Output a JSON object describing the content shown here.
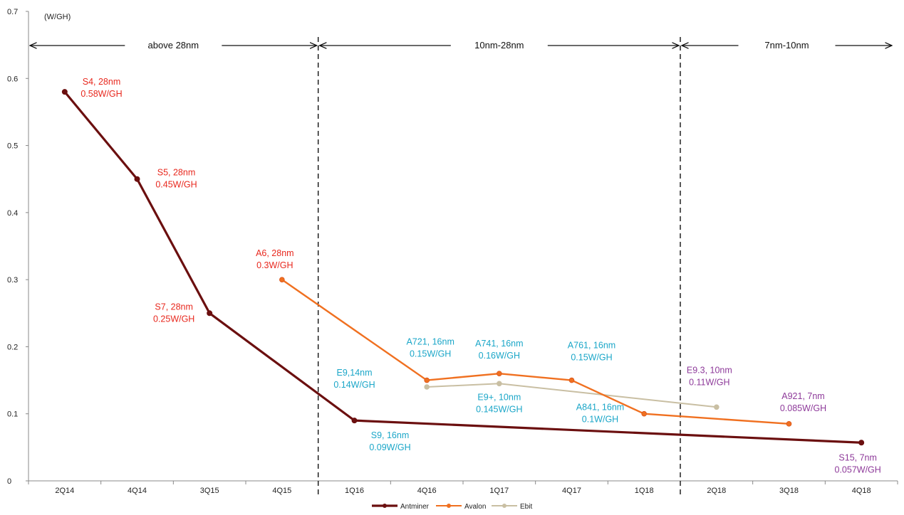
{
  "chart_data": {
    "type": "line",
    "unit_label": "(W/GH)",
    "categories": [
      "2Q14",
      "4Q14",
      "3Q15",
      "4Q15",
      "1Q16",
      "4Q16",
      "1Q17",
      "4Q17",
      "1Q18",
      "2Q18",
      "3Q18",
      "4Q18"
    ],
    "ylim": [
      0,
      0.7
    ],
    "yticks": [
      0,
      0.1,
      0.2,
      0.3,
      0.4,
      0.5,
      0.6,
      0.7
    ],
    "ytick_labels": [
      "0",
      "0.1",
      "0.2",
      "0.3",
      "0.4",
      "0.5",
      "0.6",
      "0.7"
    ],
    "grid": false,
    "legend_position": "bottom",
    "periods": [
      {
        "label": "above 28nm",
        "from": -0.5,
        "to": 3.5
      },
      {
        "label": "10nm-28nm",
        "from": 3.5,
        "to": 8.5
      },
      {
        "label": "7nm-10nm",
        "from": 8.5,
        "to": 11.5
      }
    ],
    "dividers": [
      3.5,
      8.5
    ],
    "series": [
      {
        "name": "Antminer",
        "color": "#6b0f0f",
        "points": [
          [
            "2Q14",
            0.58
          ],
          [
            "4Q14",
            0.45
          ],
          [
            "3Q15",
            0.25
          ],
          [
            "1Q16",
            0.09
          ],
          [
            "4Q18",
            0.057
          ]
        ]
      },
      {
        "name": "Avalon",
        "color": "#f07020",
        "points": [
          [
            "4Q15",
            0.3
          ],
          [
            "4Q16",
            0.15
          ],
          [
            "1Q17",
            0.16
          ],
          [
            "4Q17",
            0.15
          ],
          [
            "1Q18",
            0.1
          ],
          [
            "3Q18",
            0.085
          ]
        ]
      },
      {
        "name": "Ebit",
        "color": "#c9bfa3",
        "points": [
          [
            "4Q16",
            0.14
          ],
          [
            "1Q17",
            0.145
          ],
          [
            "2Q18",
            0.11
          ]
        ]
      }
    ],
    "annotations": [
      {
        "lines": [
          "S4, 28nm",
          "0.58W/GH"
        ],
        "x": "4Q14",
        "dx": -50,
        "y": 0.58,
        "dy": -10,
        "color": "#e8281e"
      },
      {
        "lines": [
          "S5, 28nm",
          "0.45W/GH"
        ],
        "x": "4Q14",
        "dx": 55,
        "y": 0.45,
        "dy": -5,
        "color": "#e8281e"
      },
      {
        "lines": [
          "A6, 28nm",
          "0.3W/GH"
        ],
        "x": "4Q15",
        "dx": -10,
        "y": 0.3,
        "dy": -33,
        "color": "#e8281e"
      },
      {
        "lines": [
          "S7, 28nm",
          "0.25W/GH"
        ],
        "x": "3Q15",
        "dx": -50,
        "y": 0.25,
        "dy": -5,
        "color": "#e8281e"
      },
      {
        "lines": [
          "A721, 16nm",
          "0.15W/GH"
        ],
        "x": "4Q16",
        "dx": 5,
        "y": 0.15,
        "dy": -50,
        "color": "#1aa6c8"
      },
      {
        "lines": [
          "A741, 16nm",
          "0.16W/GH"
        ],
        "x": "1Q17",
        "dx": 0,
        "y": 0.16,
        "dy": -38,
        "color": "#1aa6c8"
      },
      {
        "lines": [
          "A761, 16nm",
          "0.15W/GH"
        ],
        "x": "4Q17",
        "dx": 28,
        "y": 0.15,
        "dy": -45,
        "color": "#1aa6c8"
      },
      {
        "lines": [
          "E9,14nm",
          "0.14W/GH"
        ],
        "x": "1Q16",
        "dx": 0,
        "y": 0.14,
        "dy": -16,
        "color": "#1aa6c8"
      },
      {
        "lines": [
          "E9+, 10nm",
          "0.145W/GH"
        ],
        "x": "1Q17",
        "dx": 0,
        "y": 0.11,
        "dy": -10,
        "color": "#1aa6c8"
      },
      {
        "lines": [
          "A841, 16nm",
          "0.1W/GH"
        ],
        "x": "4Q17",
        "dx": 40,
        "y": 0.1,
        "dy": -5,
        "color": "#1aa6c8"
      },
      {
        "lines": [
          "S9, 16nm",
          "0.09W/GH"
        ],
        "x": "1Q16",
        "dx": 50,
        "y": 0.09,
        "dy": 25,
        "color": "#1aa6c8"
      },
      {
        "lines": [
          "E9.3, 10nm",
          "0.11W/GH"
        ],
        "x": "2Q18",
        "dx": -10,
        "y": 0.11,
        "dy": -48,
        "color": "#8e3a9a"
      },
      {
        "lines": [
          "A921, 7nm",
          "0.085W/GH"
        ],
        "x": "3Q18",
        "dx": 20,
        "y": 0.085,
        "dy": -35,
        "color": "#8e3a9a"
      },
      {
        "lines": [
          "S15, 7nm",
          "0.057W/GH"
        ],
        "x": "4Q18",
        "dx": -5,
        "y": 0.057,
        "dy": 25,
        "color": "#8e3a9a"
      }
    ]
  }
}
